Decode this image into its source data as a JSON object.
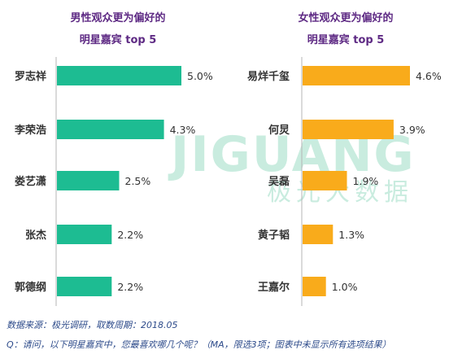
{
  "chart_data": [
    {
      "type": "bar",
      "orientation": "horizontal",
      "title": "男性观众更为偏好的",
      "subtitle": "明星嘉宾 top 5",
      "categories": [
        "罗志祥",
        "李荣浩",
        "娄艺潇",
        "张杰",
        "郭德纲"
      ],
      "values": [
        5.0,
        4.3,
        2.5,
        2.2,
        2.2
      ],
      "labels": [
        "5.0%",
        "4.3%",
        "2.5%",
        "2.2%",
        "2.2%"
      ],
      "unit": "%",
      "color": "#1dbc92",
      "xlim": [
        0,
        5.0
      ]
    },
    {
      "type": "bar",
      "orientation": "horizontal",
      "title": "女性观众更为偏好的",
      "subtitle": "明星嘉宾 top 5",
      "categories": [
        "易烊千玺",
        "何炅",
        "吴磊",
        "黄子韬",
        "王嘉尔"
      ],
      "values": [
        4.6,
        3.9,
        1.9,
        1.3,
        1.0
      ],
      "labels": [
        "4.6%",
        "3.9%",
        "1.9%",
        "1.3%",
        "1.0%"
      ],
      "unit": "%",
      "color": "#f9ab1b",
      "xlim": [
        0,
        4.6
      ]
    }
  ],
  "watermark": {
    "brand": "JIGUANG",
    "cn": "极光大数据",
    "color": "#c9ecdf"
  },
  "colors": {
    "title": "#5e2a84",
    "axis": "#b5b5b5",
    "text": "#333333"
  },
  "footer": {
    "source": "数据来源：极光调研，取数周期：2018.05",
    "question": "Q：请问，以下明星嘉宾中，您最喜欢哪几个呢？（MA，限选3项；图表中未显示所有选项结果）"
  }
}
